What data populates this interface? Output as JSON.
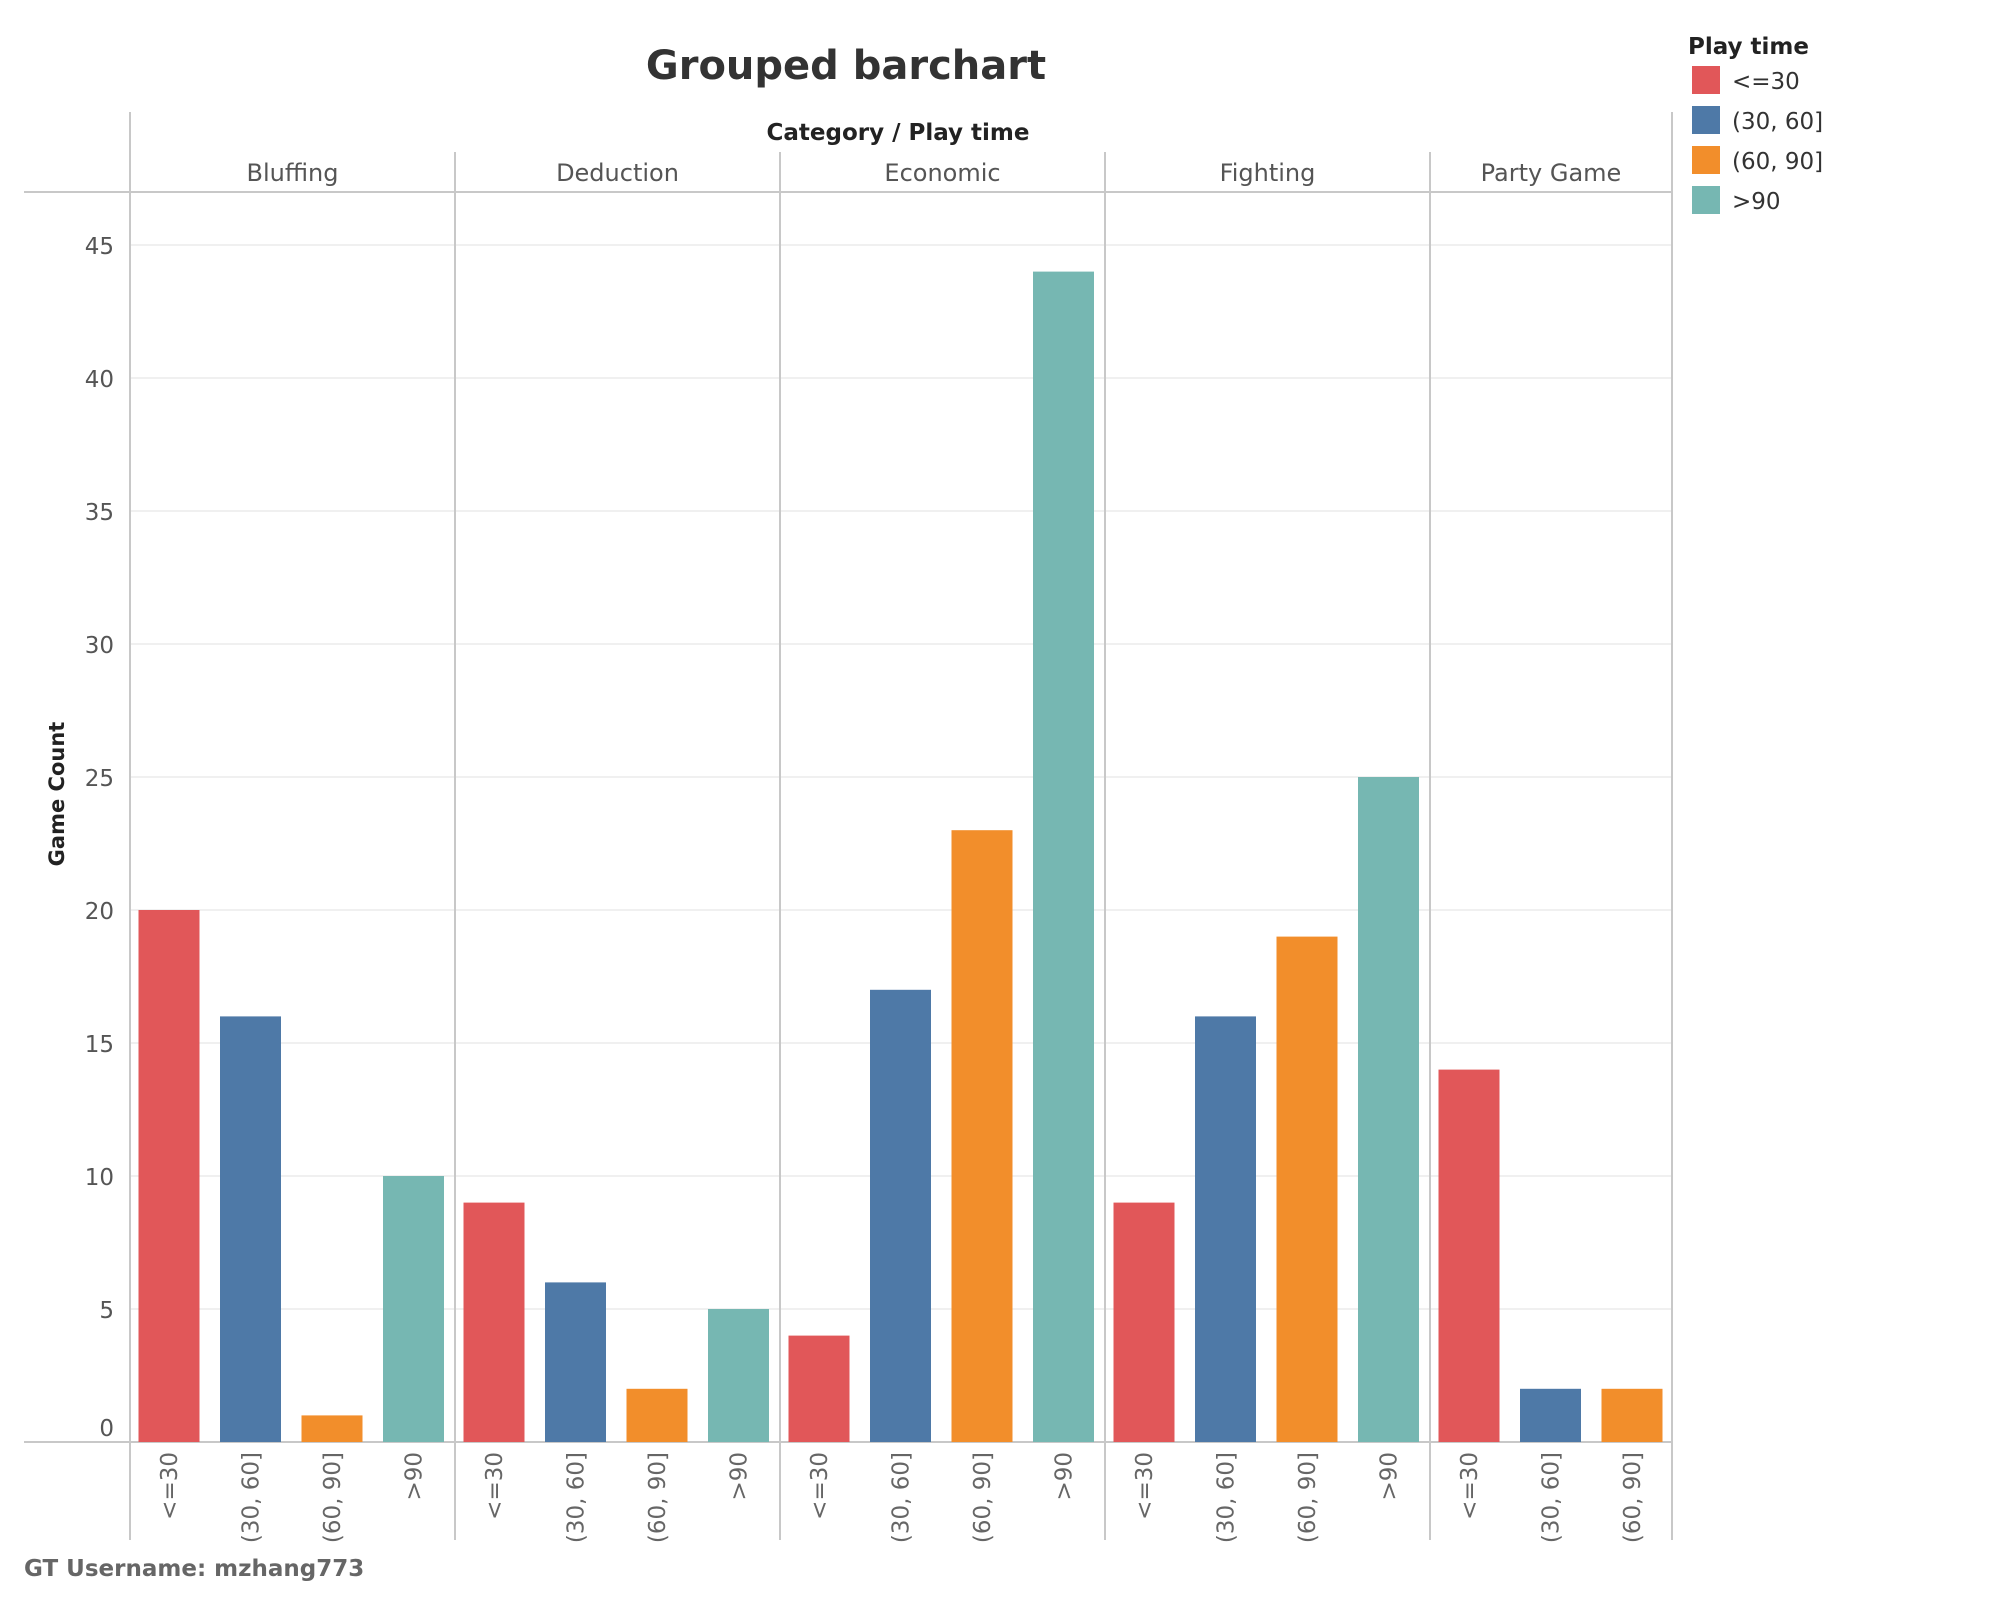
{
  "chart_data": {
    "type": "bar",
    "title": "Grouped barchart",
    "header": "Category  /  Play time",
    "ylabel": "Game Count",
    "ylim": [
      0,
      45
    ],
    "yticks": [
      0,
      5,
      10,
      15,
      20,
      25,
      30,
      35,
      40,
      45
    ],
    "grid": true,
    "legend": {
      "title": "Play time",
      "placement": "top-right"
    },
    "play_times": [
      "<=30",
      "(30, 60]",
      "(60, 90]",
      ">90"
    ],
    "colors": {
      "<=30": "#e15759",
      "(30, 60]": "#4e79a7",
      "(60, 90]": "#f28e2b",
      ">90": "#76b7b2"
    },
    "groups": [
      {
        "category": "Bluffing",
        "bars": [
          {
            "play_time": "<=30",
            "value": 20
          },
          {
            "play_time": "(30, 60]",
            "value": 16
          },
          {
            "play_time": "(60, 90]",
            "value": 1
          },
          {
            "play_time": ">90",
            "value": 10
          }
        ]
      },
      {
        "category": "Deduction",
        "bars": [
          {
            "play_time": "<=30",
            "value": 9
          },
          {
            "play_time": "(30, 60]",
            "value": 6
          },
          {
            "play_time": "(60, 90]",
            "value": 2
          },
          {
            "play_time": ">90",
            "value": 5
          }
        ]
      },
      {
        "category": "Economic",
        "bars": [
          {
            "play_time": "<=30",
            "value": 4
          },
          {
            "play_time": "(30, 60]",
            "value": 17
          },
          {
            "play_time": "(60, 90]",
            "value": 23
          },
          {
            "play_time": ">90",
            "value": 44
          }
        ]
      },
      {
        "category": "Fighting",
        "bars": [
          {
            "play_time": "<=30",
            "value": 9
          },
          {
            "play_time": "(30, 60]",
            "value": 16
          },
          {
            "play_time": "(60, 90]",
            "value": 19
          },
          {
            "play_time": ">90",
            "value": 25
          }
        ]
      },
      {
        "category": "Party Game",
        "bars": [
          {
            "play_time": "<=30",
            "value": 14
          },
          {
            "play_time": "(30, 60]",
            "value": 2
          },
          {
            "play_time": "(60, 90]",
            "value": 2
          }
        ]
      }
    ]
  },
  "footer": "GT Username: mzhang773"
}
